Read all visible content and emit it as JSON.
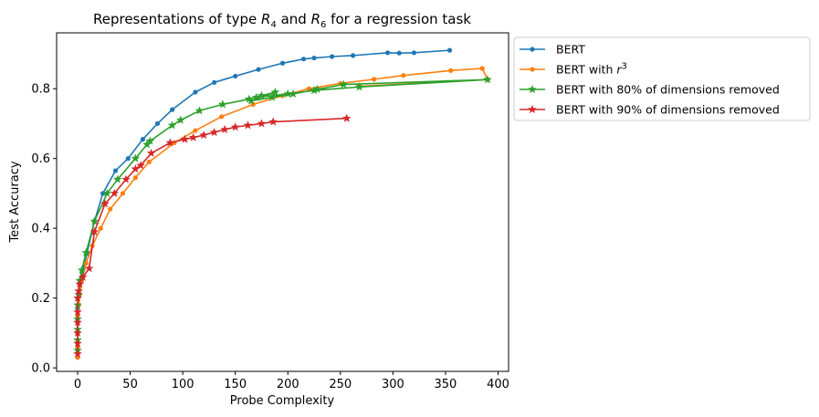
{
  "chart_data": {
    "type": "line",
    "title": {
      "prefix": "Representations of type ",
      "r1_base": "R",
      "r1_sub": "4",
      "middle": " and ",
      "r2_base": "R",
      "r2_sub": "6",
      "suffix": " for a regression task"
    },
    "xlabel": "Probe Complexity",
    "ylabel": "Test Accuracy",
    "xlim": [
      -20,
      410
    ],
    "ylim": [
      -0.01,
      0.96
    ],
    "xticks": [
      0,
      50,
      100,
      150,
      200,
      250,
      300,
      350,
      400
    ],
    "yticks": [
      0.0,
      0.2,
      0.4,
      0.6,
      0.8
    ],
    "grid": false,
    "legend_position": "outside-right",
    "series": [
      {
        "name": "BERT",
        "color": "#1f77b4",
        "marker": "circle",
        "x": [
          0,
          0,
          0,
          0,
          0,
          1,
          2,
          5,
          9,
          16,
          24,
          36,
          48,
          62,
          76,
          90,
          112,
          130,
          150,
          172,
          195,
          215,
          225,
          242,
          262,
          295,
          306,
          320,
          354
        ],
        "y": [
          0.03,
          0.06,
          0.1,
          0.14,
          0.17,
          0.21,
          0.24,
          0.28,
          0.33,
          0.42,
          0.5,
          0.565,
          0.6,
          0.655,
          0.7,
          0.74,
          0.79,
          0.818,
          0.836,
          0.855,
          0.873,
          0.885,
          0.888,
          0.892,
          0.895,
          0.903,
          0.902,
          0.903,
          0.91
        ]
      },
      {
        "name": "BERT with r^3",
        "name_base": "BERT with ",
        "name_var": "r",
        "name_sup": "3",
        "color": "#ff7f0e",
        "marker": "circle",
        "x": [
          0,
          0,
          0,
          0,
          1,
          2,
          4,
          8,
          14,
          22,
          31,
          43,
          55,
          68,
          92,
          112,
          137,
          167,
          195,
          220,
          250,
          282,
          310,
          355,
          385,
          390,
          268
        ],
        "y": [
          0.03,
          0.06,
          0.1,
          0.15,
          0.18,
          0.21,
          0.25,
          0.3,
          0.35,
          0.4,
          0.455,
          0.5,
          0.545,
          0.59,
          0.645,
          0.68,
          0.72,
          0.755,
          0.78,
          0.8,
          0.815,
          0.827,
          0.838,
          0.852,
          0.858,
          0.826,
          0.807
        ]
      },
      {
        "name": "BERT with 80% of dimensions removed",
        "color": "#2ca02c",
        "marker": "star",
        "x": [
          0,
          0,
          0,
          0,
          0,
          1,
          2,
          4,
          8,
          16,
          28,
          38,
          55,
          66,
          69,
          90,
          98,
          116,
          138,
          163,
          175,
          188,
          165,
          185,
          205,
          228,
          253,
          390,
          268,
          225,
          200,
          170
        ],
        "y": [
          0.05,
          0.08,
          0.11,
          0.14,
          0.18,
          0.21,
          0.25,
          0.28,
          0.33,
          0.42,
          0.5,
          0.54,
          0.6,
          0.64,
          0.65,
          0.695,
          0.71,
          0.737,
          0.755,
          0.77,
          0.78,
          0.79,
          0.765,
          0.775,
          0.785,
          0.798,
          0.812,
          0.826,
          0.805,
          0.795,
          0.785,
          0.775
        ]
      },
      {
        "name": "BERT with 90% of dimensions removed",
        "color": "#d62728",
        "marker": "star",
        "x": [
          0,
          0,
          0,
          0,
          0,
          0,
          1,
          2,
          5,
          11,
          16,
          26,
          35,
          46,
          55,
          60,
          70,
          88,
          102,
          110,
          120,
          130,
          140,
          150,
          162,
          175,
          186,
          256
        ],
        "y": [
          0.04,
          0.07,
          0.1,
          0.13,
          0.16,
          0.2,
          0.22,
          0.24,
          0.26,
          0.285,
          0.39,
          0.47,
          0.5,
          0.54,
          0.57,
          0.58,
          0.615,
          0.645,
          0.655,
          0.66,
          0.667,
          0.675,
          0.683,
          0.69,
          0.695,
          0.7,
          0.705,
          0.715
        ]
      }
    ]
  }
}
